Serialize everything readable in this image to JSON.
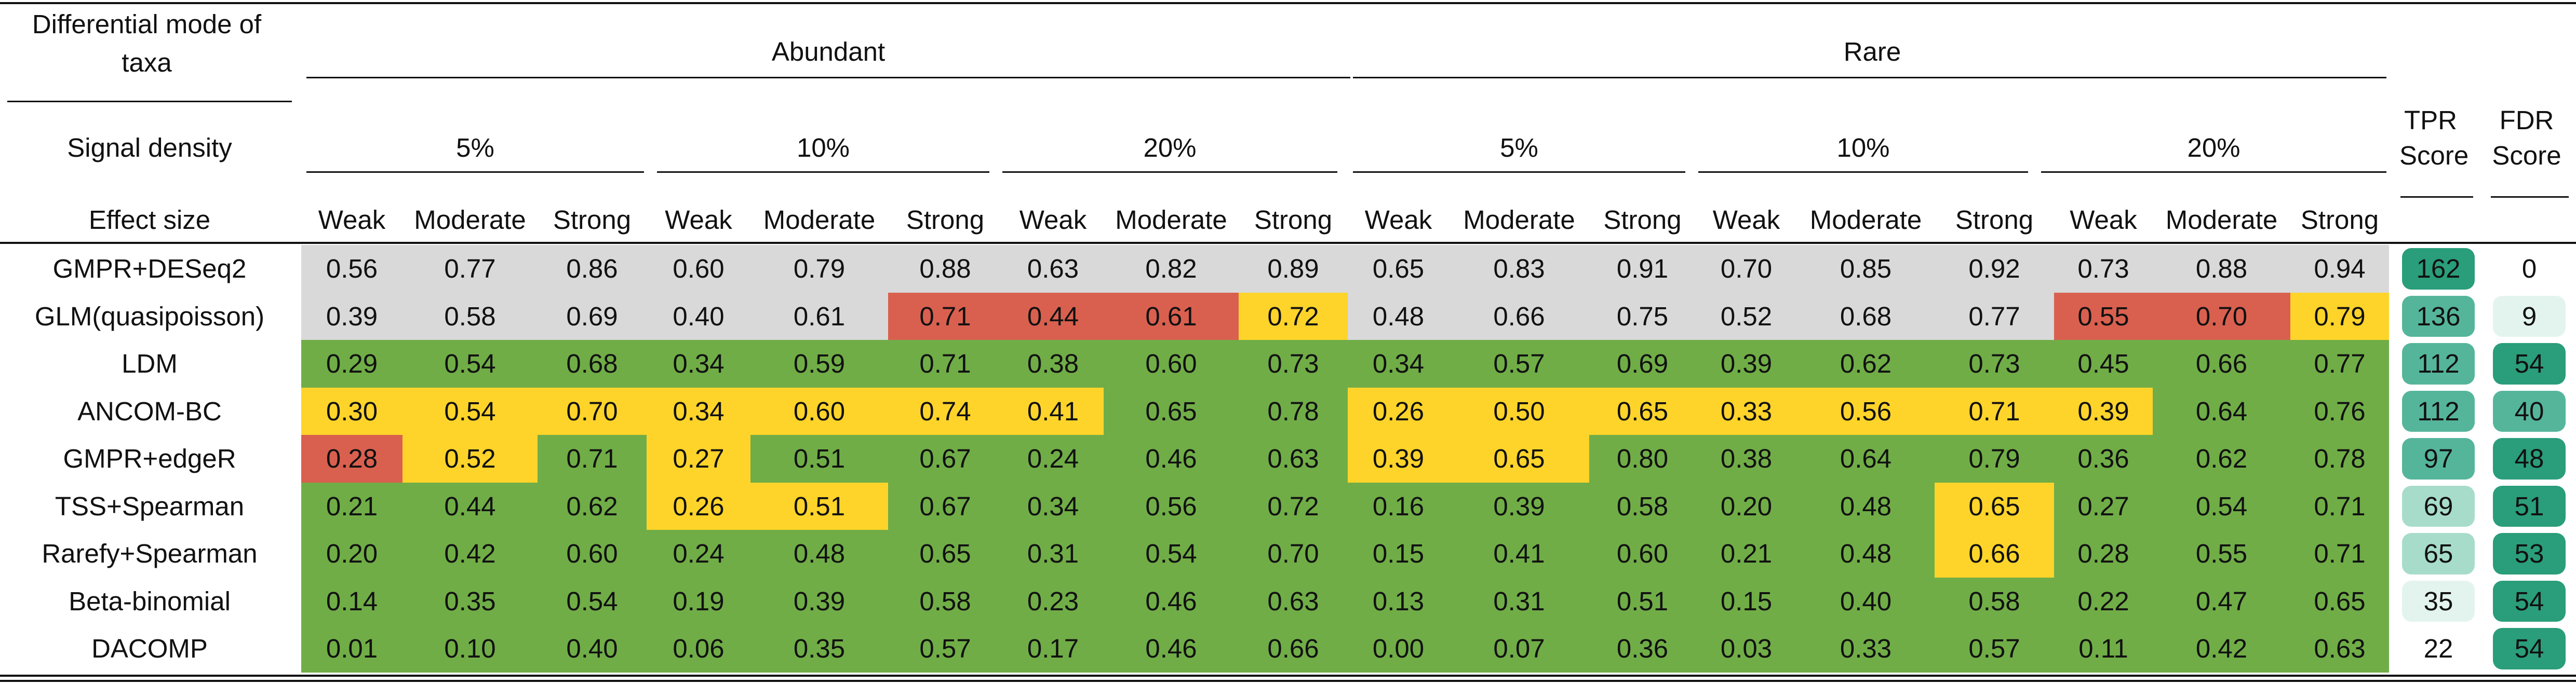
{
  "header": {
    "mode_label": "Differential mode of taxa",
    "abundant": "Abundant",
    "rare": "Rare",
    "signal_label": "Signal density",
    "effect_label": "Effect size",
    "tpr_label": "TPR Score",
    "fdr_label": "FDR Score",
    "densities": [
      "5%",
      "10%",
      "20%",
      "5%",
      "10%",
      "20%"
    ],
    "effects": [
      "Weak",
      "Moderate",
      "Strong",
      "Weak",
      "Moderate",
      "Strong",
      "Weak",
      "Moderate",
      "Strong",
      "Weak",
      "Moderate",
      "Strong",
      "Weak",
      "Moderate",
      "Strong",
      "Weak",
      "Moderate",
      "Strong"
    ]
  },
  "colors": {
    "gray": "#d9d9d9",
    "green": "#70ad47",
    "yellow": "#ffd42a",
    "red": "#d9604f",
    "teal_dark": "#2a9d7a",
    "teal_mid": "#55b59a",
    "teal_light": "#a7dccb",
    "teal_pale": "#e3f4ee"
  },
  "rows": [
    {
      "method": "GMPR+DESeq2",
      "values": [
        "0.56",
        "0.77",
        "0.86",
        "0.60",
        "0.79",
        "0.88",
        "0.63",
        "0.82",
        "0.89",
        "0.65",
        "0.83",
        "0.91",
        "0.70",
        "0.85",
        "0.92",
        "0.73",
        "0.88",
        "0.94"
      ],
      "colors": [
        "G",
        "G",
        "G",
        "G",
        "G",
        "G",
        "G",
        "G",
        "G",
        "G",
        "G",
        "G",
        "G",
        "G",
        "G",
        "G",
        "G",
        "G"
      ],
      "tpr": "162",
      "fdr": "0"
    },
    {
      "method": "GLM(quasipoisson)",
      "values": [
        "0.39",
        "0.58",
        "0.69",
        "0.40",
        "0.61",
        "0.71",
        "0.44",
        "0.61",
        "0.72",
        "0.48",
        "0.66",
        "0.75",
        "0.52",
        "0.68",
        "0.77",
        "0.55",
        "0.70",
        "0.79"
      ],
      "colors": [
        "G",
        "G",
        "G",
        "G",
        "G",
        "R",
        "R",
        "R",
        "Y",
        "G",
        "G",
        "G",
        "G",
        "G",
        "G",
        "R",
        "R",
        "Y"
      ],
      "tpr": "136",
      "fdr": "9"
    },
    {
      "method": "LDM",
      "values": [
        "0.29",
        "0.54",
        "0.68",
        "0.34",
        "0.59",
        "0.71",
        "0.38",
        "0.60",
        "0.73",
        "0.34",
        "0.57",
        "0.69",
        "0.39",
        "0.62",
        "0.73",
        "0.45",
        "0.66",
        "0.77"
      ],
      "colors": [
        "N",
        "N",
        "N",
        "N",
        "N",
        "N",
        "N",
        "N",
        "N",
        "N",
        "N",
        "N",
        "N",
        "N",
        "N",
        "N",
        "N",
        "N"
      ],
      "tpr": "112",
      "fdr": "54"
    },
    {
      "method": "ANCOM-BC",
      "values": [
        "0.30",
        "0.54",
        "0.70",
        "0.34",
        "0.60",
        "0.74",
        "0.41",
        "0.65",
        "0.78",
        "0.26",
        "0.50",
        "0.65",
        "0.33",
        "0.56",
        "0.71",
        "0.39",
        "0.64",
        "0.76"
      ],
      "colors": [
        "Y",
        "Y",
        "Y",
        "Y",
        "Y",
        "Y",
        "Y",
        "N",
        "N",
        "Y",
        "Y",
        "Y",
        "Y",
        "Y",
        "Y",
        "Y",
        "N",
        "N"
      ],
      "tpr": "112",
      "fdr": "40"
    },
    {
      "method": "GMPR+edgeR",
      "values": [
        "0.28",
        "0.52",
        "0.71",
        "0.27",
        "0.51",
        "0.67",
        "0.24",
        "0.46",
        "0.63",
        "0.39",
        "0.65",
        "0.80",
        "0.38",
        "0.64",
        "0.79",
        "0.36",
        "0.62",
        "0.78"
      ],
      "colors": [
        "R",
        "Y",
        "N",
        "Y",
        "N",
        "N",
        "N",
        "N",
        "N",
        "Y",
        "Y",
        "N",
        "N",
        "N",
        "N",
        "N",
        "N",
        "N"
      ],
      "tpr": "97",
      "fdr": "48"
    },
    {
      "method": "TSS+Spearman",
      "values": [
        "0.21",
        "0.44",
        "0.62",
        "0.26",
        "0.51",
        "0.67",
        "0.34",
        "0.56",
        "0.72",
        "0.16",
        "0.39",
        "0.58",
        "0.20",
        "0.48",
        "0.65",
        "0.27",
        "0.54",
        "0.71"
      ],
      "colors": [
        "N",
        "N",
        "N",
        "Y",
        "Y",
        "N",
        "N",
        "N",
        "N",
        "N",
        "N",
        "N",
        "N",
        "N",
        "Y",
        "N",
        "N",
        "N"
      ],
      "tpr": "69",
      "fdr": "51"
    },
    {
      "method": "Rarefy+Spearman",
      "values": [
        "0.20",
        "0.42",
        "0.60",
        "0.24",
        "0.48",
        "0.65",
        "0.31",
        "0.54",
        "0.70",
        "0.15",
        "0.41",
        "0.60",
        "0.21",
        "0.48",
        "0.66",
        "0.28",
        "0.55",
        "0.71"
      ],
      "colors": [
        "N",
        "N",
        "N",
        "N",
        "N",
        "N",
        "N",
        "N",
        "N",
        "N",
        "N",
        "N",
        "N",
        "N",
        "Y",
        "N",
        "N",
        "N"
      ],
      "tpr": "65",
      "fdr": "53"
    },
    {
      "method": "Beta-binomial",
      "values": [
        "0.14",
        "0.35",
        "0.54",
        "0.19",
        "0.39",
        "0.58",
        "0.23",
        "0.46",
        "0.63",
        "0.13",
        "0.31",
        "0.51",
        "0.15",
        "0.40",
        "0.58",
        "0.22",
        "0.47",
        "0.65"
      ],
      "colors": [
        "N",
        "N",
        "N",
        "N",
        "N",
        "N",
        "N",
        "N",
        "N",
        "N",
        "N",
        "N",
        "N",
        "N",
        "N",
        "N",
        "N",
        "N"
      ],
      "tpr": "35",
      "fdr": "54"
    },
    {
      "method": "DACOMP",
      "values": [
        "0.01",
        "0.10",
        "0.40",
        "0.06",
        "0.35",
        "0.57",
        "0.17",
        "0.46",
        "0.66",
        "0.00",
        "0.07",
        "0.36",
        "0.03",
        "0.33",
        "0.57",
        "0.11",
        "0.42",
        "0.63"
      ],
      "colors": [
        "N",
        "N",
        "N",
        "N",
        "N",
        "N",
        "N",
        "N",
        "N",
        "N",
        "N",
        "N",
        "N",
        "N",
        "N",
        "N",
        "N",
        "N"
      ],
      "tpr": "22",
      "fdr": "54"
    }
  ],
  "tpr_shade": [
    "dark",
    "mid",
    "mid",
    "mid",
    "mid",
    "light",
    "light",
    "pale",
    "none"
  ],
  "fdr_shade": [
    "none",
    "pale",
    "dark",
    "mid",
    "dark",
    "dark",
    "dark",
    "dark",
    "dark"
  ]
}
